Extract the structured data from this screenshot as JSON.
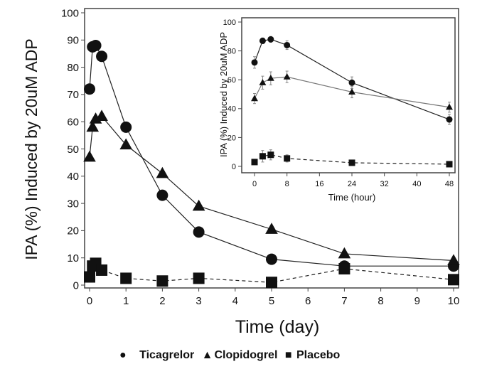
{
  "chart_data": [
    {
      "type": "line",
      "xlabel": "Time (day)",
      "ylabel": "IPA (%) Induced by 20uM ADP",
      "xlim": [
        0,
        10
      ],
      "ylim": [
        0,
        100
      ],
      "xticks": [
        0,
        1,
        2,
        3,
        4,
        5,
        6,
        7,
        8,
        9,
        10
      ],
      "yticks": [
        0,
        10,
        20,
        30,
        40,
        50,
        60,
        70,
        80,
        90,
        100
      ],
      "grid": false,
      "series": [
        {
          "name": "Ticagrelor",
          "marker": "circle",
          "dash": false,
          "x": [
            0,
            0.083,
            0.167,
            0.333,
            1,
            2,
            3,
            5,
            7,
            10
          ],
          "y": [
            72,
            87.5,
            88,
            84,
            58,
            33,
            19.5,
            9.5,
            7,
            7
          ]
        },
        {
          "name": "Clopidogrel",
          "marker": "triangle",
          "dash": false,
          "x": [
            0,
            0.083,
            0.167,
            0.333,
            1,
            2,
            3,
            5,
            7,
            10
          ],
          "y": [
            47,
            58,
            61,
            62,
            51.5,
            41,
            29,
            20.5,
            11.5,
            9
          ]
        },
        {
          "name": "Placebo",
          "marker": "square",
          "dash": true,
          "x": [
            0,
            0.083,
            0.167,
            0.333,
            1,
            2,
            3,
            5,
            7,
            10
          ],
          "y": [
            3,
            7,
            8,
            5.5,
            2.5,
            1.5,
            2.5,
            1,
            6,
            2
          ]
        }
      ],
      "legend": {
        "position": "bottom",
        "items": [
          "Ticagrelor",
          "Clopidogrel",
          "Placebo"
        ]
      }
    },
    {
      "type": "line",
      "xlabel": "Time (hour)",
      "ylabel": "IPA (%) Induced by 20uM ADP",
      "xlim": [
        0,
        48
      ],
      "ylim": [
        0,
        100
      ],
      "xticks": [
        0,
        8,
        16,
        24,
        32,
        40,
        48
      ],
      "yticks": [
        0,
        20,
        40,
        60,
        80,
        100
      ],
      "grid": false,
      "error_bars": true,
      "series": [
        {
          "name": "Ticagrelor",
          "marker": "circle",
          "dash": false,
          "x": [
            0,
            2,
            4,
            8,
            24,
            48
          ],
          "y": [
            72,
            87,
            88,
            84,
            58,
            32.5
          ],
          "err": [
            4,
            2,
            2,
            3,
            4,
            3.5
          ]
        },
        {
          "name": "Clopidogrel",
          "marker": "triangle",
          "dash": false,
          "x": [
            0,
            2,
            4,
            8,
            24,
            48
          ],
          "y": [
            47,
            58,
            61,
            62,
            51.5,
            41
          ],
          "err": [
            3.5,
            4.5,
            4.5,
            4,
            4,
            3.5
          ]
        },
        {
          "name": "Placebo",
          "marker": "square",
          "dash": true,
          "x": [
            0,
            2,
            4,
            8,
            24,
            48
          ],
          "y": [
            3,
            7,
            8,
            5.5,
            2.5,
            1.5
          ],
          "err": [
            1.5,
            4,
            3.5,
            2.5,
            1,
            1
          ]
        }
      ]
    }
  ],
  "legend_labels": {
    "ticagrelor": "Ticagrelor",
    "clopidogrel": "Clopidogrel",
    "placebo": "Placebo"
  },
  "legend_symbols": {
    "ticagrelor": "●",
    "clopidogrel": "▲",
    "placebo": "■"
  }
}
